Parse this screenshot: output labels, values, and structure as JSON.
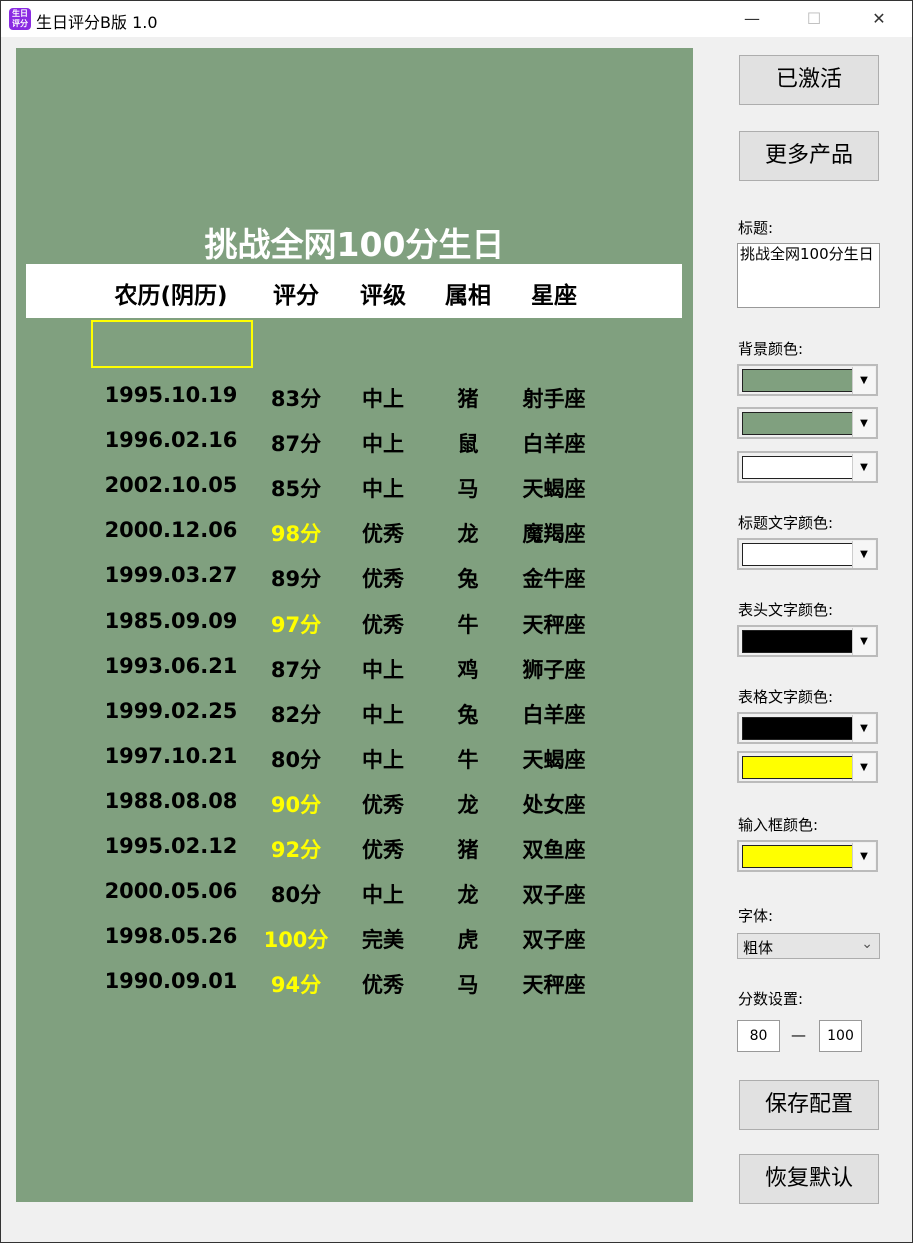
{
  "window": {
    "title": "生日评分B版 1.0",
    "icon_text": "生日评分",
    "minimize": "—",
    "maximize": "☐",
    "close": "✕"
  },
  "colors": {
    "panel_bg": "#80a07f",
    "header_bg": "#ffffff",
    "title_text": "#ffffff",
    "header_text": "#000000",
    "cell_text": "#000000",
    "highlight_text": "#ffff00",
    "input_border": "#ffff00"
  },
  "preview": {
    "title": "挑战全网100分生日",
    "headers": [
      "农历(阴历)",
      "评分",
      "评级",
      "属相",
      "星座"
    ],
    "rows": [
      [
        "1995.10.19",
        "83分",
        "中上",
        "猪",
        "射手座",
        false
      ],
      [
        "1996.02.16",
        "87分",
        "中上",
        "鼠",
        "白羊座",
        false
      ],
      [
        "2002.10.05",
        "85分",
        "中上",
        "马",
        "天蝎座",
        false
      ],
      [
        "2000.12.06",
        "98分",
        "优秀",
        "龙",
        "魔羯座",
        true
      ],
      [
        "1999.03.27",
        "89分",
        "优秀",
        "兔",
        "金牛座",
        false
      ],
      [
        "1985.09.09",
        "97分",
        "优秀",
        "牛",
        "天秤座",
        true
      ],
      [
        "1993.06.21",
        "87分",
        "中上",
        "鸡",
        "狮子座",
        false
      ],
      [
        "1999.02.25",
        "82分",
        "中上",
        "兔",
        "白羊座",
        false
      ],
      [
        "1997.10.21",
        "80分",
        "中上",
        "牛",
        "天蝎座",
        false
      ],
      [
        "1988.08.08",
        "90分",
        "优秀",
        "龙",
        "处女座",
        true
      ],
      [
        "1995.02.12",
        "92分",
        "优秀",
        "猪",
        "双鱼座",
        true
      ],
      [
        "2000.05.06",
        "80分",
        "中上",
        "龙",
        "双子座",
        false
      ],
      [
        "1998.05.26",
        "100分",
        "完美",
        "虎",
        "双子座",
        true
      ],
      [
        "1990.09.01",
        "94分",
        "优秀",
        "马",
        "天秤座",
        true
      ]
    ]
  },
  "side": {
    "activated": "已激活",
    "more_products": "更多产品",
    "title_label": "标题:",
    "title_value": "挑战全网100分生日",
    "bg_label": "背景颜色:",
    "bg_colors": [
      "#80a07f",
      "#80a07f",
      "#ffffff"
    ],
    "title_color_label": "标题文字颜色:",
    "title_color": "#ffffff",
    "header_color_label": "表头文字颜色:",
    "header_color": "#000000",
    "cell_color_label": "表格文字颜色:",
    "cell_colors": [
      "#000000",
      "#ffff00"
    ],
    "input_color_label": "输入框颜色:",
    "input_color": "#ffff00",
    "font_label": "字体:",
    "font_value": "粗体",
    "score_label": "分数设置:",
    "score_min": "80",
    "score_sep": "—",
    "score_max": "100",
    "save": "保存配置",
    "reset": "恢复默认"
  }
}
